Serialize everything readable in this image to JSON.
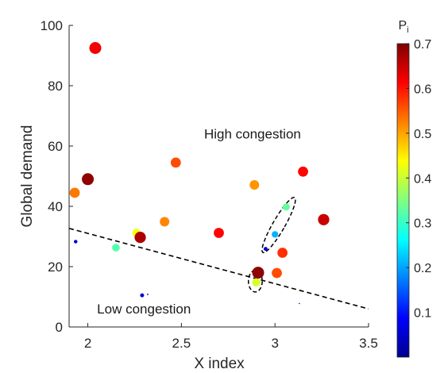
{
  "chart_data": {
    "type": "scatter",
    "title": "",
    "xlabel": "X index",
    "ylabel": "Global demand",
    "xlim": [
      1.9,
      3.5
    ],
    "ylim": [
      0,
      100
    ],
    "xticks": [
      "2",
      "2.5",
      "3",
      "3.5"
    ],
    "yticks": [
      "0",
      "20",
      "40",
      "60",
      "80",
      "100"
    ],
    "grid": false,
    "colorbar": {
      "label_main": "P",
      "label_sub": "i",
      "range": [
        0,
        0.7
      ],
      "ticks": [
        "0.1",
        "0.2",
        "0.3",
        "0.4",
        "0.5",
        "0.6",
        "0.7"
      ],
      "colormap": "jet"
    },
    "annotations": [
      {
        "text": "High congestion",
        "x": 2.88,
        "y": 62.5
      },
      {
        "text": "Low congestion",
        "x": 2.3,
        "y": 4.5
      }
    ],
    "separator_line": {
      "style": "dashed",
      "x": [
        1.9,
        3.5
      ],
      "y": [
        32.7,
        6.0
      ]
    },
    "ellipses": [
      {
        "cx": 3.02,
        "cy": 33.8,
        "rx": 0.032,
        "ry": 10.5,
        "angle_deg": 30
      },
      {
        "cx": 2.895,
        "cy": 15.2,
        "rx": 0.037,
        "ry": 3.6,
        "angle_deg": 0
      }
    ],
    "points": [
      {
        "x": 2.04,
        "y": 92.5,
        "p": 0.62,
        "s": 1.0
      },
      {
        "x": 2.0,
        "y": 49.0,
        "p": 0.69,
        "s": 1.0
      },
      {
        "x": 1.93,
        "y": 44.5,
        "p": 0.53,
        "s": 0.85
      },
      {
        "x": 1.935,
        "y": 28.3,
        "p": 0.05,
        "s": 0.3
      },
      {
        "x": 2.15,
        "y": 26.3,
        "p": 0.32,
        "s": 0.65
      },
      {
        "x": 2.26,
        "y": 31.2,
        "p": 0.43,
        "s": 0.7
      },
      {
        "x": 2.28,
        "y": 29.7,
        "p": 0.67,
        "s": 0.95
      },
      {
        "x": 2.29,
        "y": 10.5,
        "p": 0.06,
        "s": 0.33
      },
      {
        "x": 2.32,
        "y": 10.8,
        "p": 0.02,
        "s": 0.12
      },
      {
        "x": 2.41,
        "y": 34.9,
        "p": 0.52,
        "s": 0.8
      },
      {
        "x": 2.47,
        "y": 54.5,
        "p": 0.56,
        "s": 0.85
      },
      {
        "x": 2.7,
        "y": 31.2,
        "p": 0.61,
        "s": 0.85
      },
      {
        "x": 2.89,
        "y": 47.1,
        "p": 0.51,
        "s": 0.8
      },
      {
        "x": 2.9,
        "y": 14.8,
        "p": 0.41,
        "s": 0.7
      },
      {
        "x": 2.91,
        "y": 18.0,
        "p": 0.69,
        "s": 1.0
      },
      {
        "x": 2.95,
        "y": 25.9,
        "p": 0.06,
        "s": 0.33
      },
      {
        "x": 3.0,
        "y": 30.7,
        "p": 0.21,
        "s": 0.55
      },
      {
        "x": 3.01,
        "y": 17.9,
        "p": 0.56,
        "s": 0.85
      },
      {
        "x": 3.04,
        "y": 24.6,
        "p": 0.58,
        "s": 0.85
      },
      {
        "x": 3.06,
        "y": 39.8,
        "p": 0.33,
        "s": 0.6
      },
      {
        "x": 3.13,
        "y": 7.8,
        "p": 0.02,
        "s": 0.1
      },
      {
        "x": 3.15,
        "y": 51.5,
        "p": 0.61,
        "s": 0.85
      },
      {
        "x": 3.26,
        "y": 35.6,
        "p": 0.65,
        "s": 0.95
      }
    ]
  }
}
